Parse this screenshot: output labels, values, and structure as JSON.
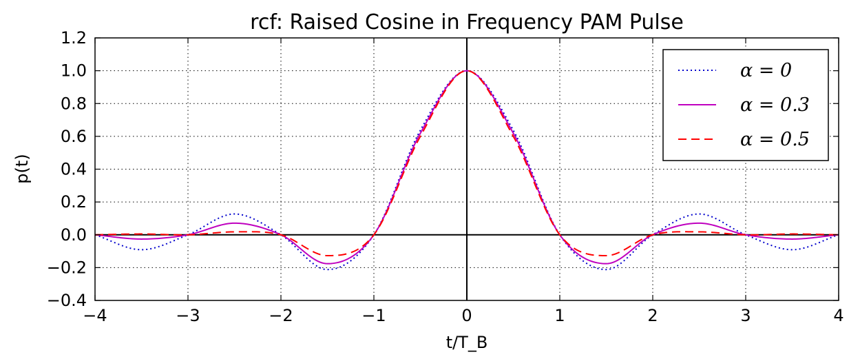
{
  "chart_data": {
    "type": "line",
    "title": "rcf: Raised Cosine in Frequency PAM Pulse",
    "xlabel": "t/T_B",
    "ylabel": "p(t)",
    "xlim": [
      -4,
      4
    ],
    "ylim": [
      -0.4,
      1.2
    ],
    "xticks": [
      -4,
      -3,
      -2,
      -1,
      0,
      1,
      2,
      3,
      4
    ],
    "xtick_labels": [
      "−4",
      "−3",
      "−2",
      "−1",
      "0",
      "1",
      "2",
      "3",
      "4"
    ],
    "yticks": [
      -0.4,
      -0.2,
      0.0,
      0.2,
      0.4,
      0.6,
      0.8,
      1.0,
      1.2
    ],
    "ytick_labels": [
      "−0.4",
      "−0.2",
      "0.0",
      "0.2",
      "0.4",
      "0.6",
      "0.8",
      "1.0",
      "1.2"
    ],
    "grid": true,
    "legend_position": "top-right",
    "x": [
      -4.0,
      -3.5,
      -3.0,
      -2.5,
      -2.0,
      -1.5,
      -1.0,
      -0.5,
      0.0,
      0.5,
      1.0,
      1.5,
      2.0,
      2.5,
      3.0,
      3.5,
      4.0
    ],
    "series": [
      {
        "name": "α = 0",
        "style": "dotted",
        "color": "#0000cc",
        "values": [
          0.0,
          -0.091,
          0.0,
          0.127,
          0.0,
          -0.212,
          0.0,
          0.637,
          1.0,
          0.637,
          0.0,
          -0.212,
          0.0,
          0.127,
          0.0,
          -0.091,
          0.0
        ]
      },
      {
        "name": "α = 0.3",
        "style": "solid",
        "color": "#bf00bf",
        "values": [
          0.0,
          -0.026,
          0.0,
          0.071,
          0.0,
          -0.176,
          0.0,
          0.619,
          1.0,
          0.619,
          0.0,
          -0.176,
          0.0,
          0.071,
          0.0,
          -0.026,
          0.0
        ]
      },
      {
        "name": "α = 0.5",
        "style": "dashed",
        "color": "#ff0000",
        "values": [
          0.0,
          0.005,
          0.0,
          0.018,
          0.0,
          -0.127,
          0.0,
          0.6,
          1.0,
          0.6,
          0.0,
          -0.127,
          0.0,
          0.018,
          0.0,
          0.005,
          0.0
        ]
      }
    ]
  }
}
